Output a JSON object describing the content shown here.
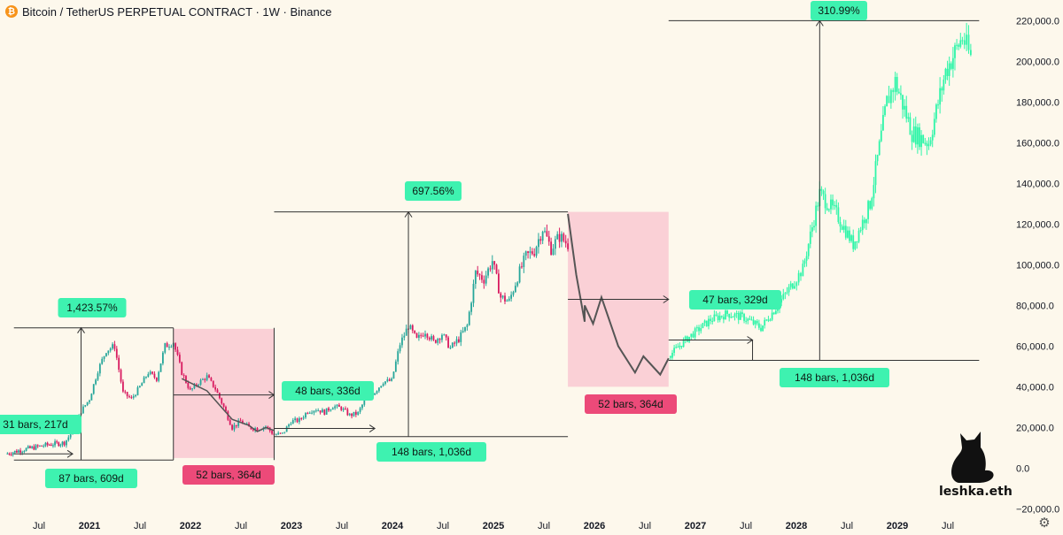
{
  "header": {
    "title": "Bitcoin / TetherUS PERPETUAL CONTRACT · 1W · Binance"
  },
  "brand": {
    "label": "leshka.eth"
  },
  "colors": {
    "background": "#fdf8ec",
    "candle_up": "#26a69a",
    "candle_down": "#d81b60",
    "projection": "#2ef5a8",
    "label_green": "#3ef2b0",
    "label_red": "#ec4a79",
    "bear_zone": "#f8c3cf",
    "path_line": "#555555"
  },
  "chart_data": {
    "type": "line",
    "title": "",
    "ylim": [
      -22000,
      228000
    ],
    "y_ticks": [
      "220,000.0",
      "200,000.0",
      "180,000.0",
      "160,000.0",
      "140,000.0",
      "120,000.0",
      "100,000.0",
      "80,000.0",
      "60,000.0",
      "40,000.0",
      "20,000.0",
      "0.0",
      "−20,000.0"
    ],
    "x_ticks": [
      "Jul",
      "2021",
      "Jul",
      "2022",
      "Jul",
      "2023",
      "Jul",
      "2024",
      "Jul",
      "2025",
      "Jul",
      "2026",
      "Jul",
      "2027",
      "Jul",
      "2028",
      "Jul",
      "2029",
      "Jul"
    ],
    "series": [
      {
        "kind": "candles",
        "x": [
          "2020-03",
          "2020-05",
          "2020-08",
          "2020-10",
          "2020-11",
          "2020-12",
          "2021-01",
          "2021-02",
          "2021-03",
          "2021-04",
          "2021-05",
          "2021-06",
          "2021-07",
          "2021-08",
          "2021-09",
          "2021-10",
          "2021-11",
          "2021-12",
          "2022-01",
          "2022-02",
          "2022-03",
          "2022-04",
          "2022-05",
          "2022-06",
          "2022-07",
          "2022-08",
          "2022-09",
          "2022-10",
          "2022-11",
          "2022-12",
          "2023-01",
          "2023-02",
          "2023-03",
          "2023-04",
          "2023-05",
          "2023-06",
          "2023-07",
          "2023-08",
          "2023-09",
          "2023-10",
          "2023-11",
          "2023-12",
          "2024-01",
          "2024-02",
          "2024-03",
          "2024-04",
          "2024-05",
          "2024-06",
          "2024-07",
          "2024-08",
          "2024-09",
          "2024-10",
          "2024-11",
          "2024-12",
          "2025-01",
          "2025-02",
          "2025-03",
          "2025-04",
          "2025-05",
          "2025-06",
          "2025-07",
          "2025-08",
          "2025-09",
          "2025-10"
        ],
        "values": [
          7000,
          9000,
          11500,
          12500,
          18000,
          28000,
          34000,
          48000,
          58000,
          60000,
          37000,
          34000,
          40000,
          47000,
          44000,
          60000,
          62000,
          47000,
          38000,
          42000,
          45000,
          39000,
          30000,
          20000,
          23000,
          20000,
          19500,
          20500,
          16500,
          16800,
          23000,
          23500,
          28000,
          29000,
          27500,
          30500,
          29500,
          26000,
          27000,
          35000,
          37500,
          42500,
          43000,
          61000,
          70000,
          63000,
          67500,
          62000,
          66000,
          59000,
          63500,
          70000,
          96000,
          93000,
          102000,
          84000,
          82000,
          94000,
          104000,
          107000,
          118000,
          108000,
          114000,
          110000
        ]
      },
      {
        "kind": "projected-path",
        "x": [
          "2025-10",
          "2025-11",
          "2025-12",
          "2025-12",
          "2026-01",
          "2026-02",
          "2026-04",
          "2026-06",
          "2026-07",
          "2026-09",
          "2026-10"
        ],
        "values": [
          125000,
          95000,
          72000,
          80000,
          71000,
          84000,
          60000,
          47000,
          55000,
          46000,
          54000
        ]
      },
      {
        "kind": "projected-candles",
        "x": [
          "2026-10",
          "2026-12",
          "2027-03",
          "2027-05",
          "2027-07",
          "2027-09",
          "2027-11",
          "2028-01",
          "2028-02",
          "2028-04",
          "2028-06",
          "2028-08",
          "2028-10",
          "2028-12",
          "2029-01",
          "2029-03",
          "2029-05",
          "2029-07",
          "2029-09",
          "2029-10"
        ],
        "values": [
          55000,
          63000,
          73000,
          76000,
          74000,
          69000,
          80000,
          92000,
          98000,
          135000,
          125000,
          110000,
          130000,
          180000,
          190000,
          165000,
          160000,
          195000,
          212000,
          202000
        ]
      }
    ],
    "annotations": [
      {
        "id": "range1",
        "from": "2020-05",
        "to": "2021-11",
        "percent": "1,423.57%"
      },
      {
        "id": "range2",
        "from": "2022-11",
        "to": "2025-10",
        "percent": "697.56%"
      },
      {
        "id": "range3",
        "from": "2026-10",
        "to": "2029-10",
        "percent": "310.99%"
      }
    ],
    "labels": {
      "a_31": "31 bars, 217d",
      "a_87": "87 bars, 609d",
      "a_1423": "1,423.57%",
      "a_52a": "52 bars, 364d",
      "a_48": "48 bars, 336d",
      "a_148a": "148 bars, 1,036d",
      "a_697": "697.56%",
      "a_52b": "52 bars, 364d",
      "a_47": "47 bars, 329d",
      "a_148b": "148 bars, 1,036d",
      "a_310": "310.99%"
    }
  }
}
